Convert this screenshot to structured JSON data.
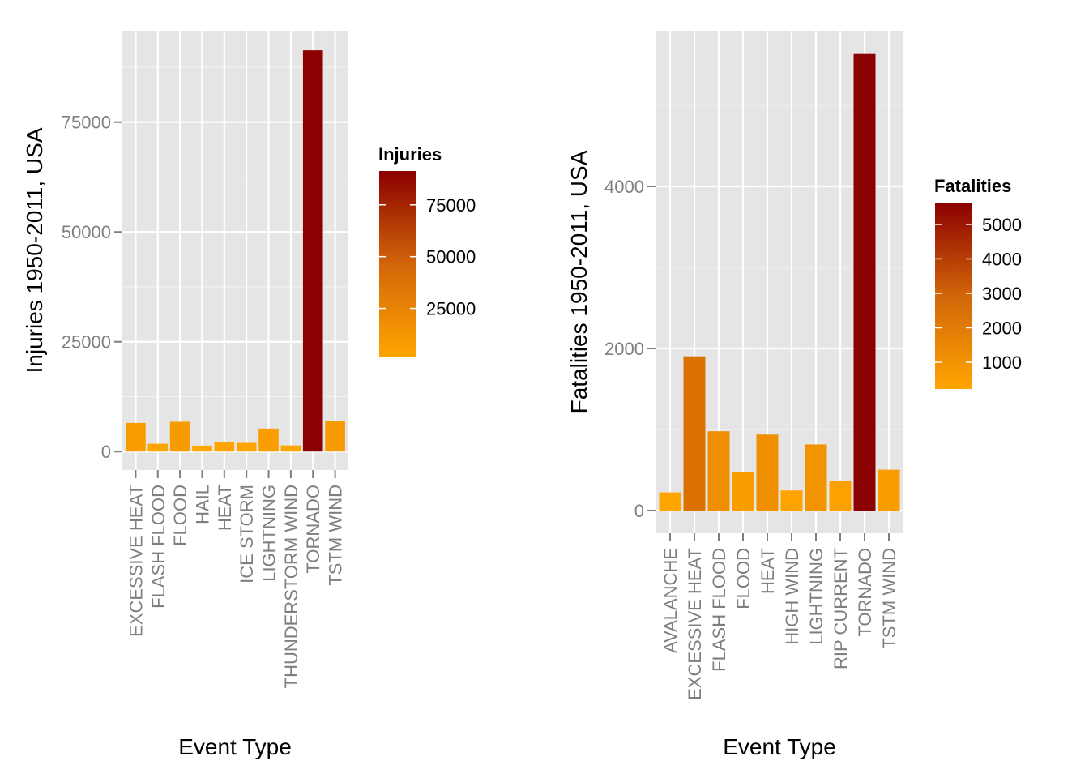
{
  "chart_data": [
    {
      "type": "bar",
      "xlabel": "Event Type",
      "ylabel": "Injuries 1950-2011, USA",
      "categories": [
        "EXCESSIVE HEAT",
        "FLASH FLOOD",
        "FLOOD",
        "HAIL",
        "HEAT",
        "ICE STORM",
        "LIGHTNING",
        "THUNDERSTORM WIND",
        "TORNADO",
        "TSTM WIND"
      ],
      "values": [
        6525,
        1777,
        6789,
        1361,
        2100,
        1975,
        5230,
        1400,
        91346,
        6957
      ],
      "ylim": [
        -4200,
        95800
      ],
      "yticks": [
        0,
        25000,
        50000,
        75000
      ],
      "legend": {
        "title": "Injuries",
        "placement": "right",
        "ticks": [
          25000,
          50000,
          75000
        ],
        "min": 1361,
        "max": 91346
      },
      "grid": true,
      "color_low": "#FFA500",
      "color_high": "#8B0000"
    },
    {
      "type": "bar",
      "xlabel": "Event Type",
      "ylabel": "Fatalities 1950-2011, USA",
      "categories": [
        "AVALANCHE",
        "EXCESSIVE HEAT",
        "FLASH FLOOD",
        "FLOOD",
        "HEAT",
        "HIGH WIND",
        "LIGHTNING",
        "RIP CURRENT",
        "TORNADO",
        "TSTM WIND"
      ],
      "values": [
        224,
        1903,
        978,
        470,
        937,
        248,
        816,
        368,
        5633,
        504
      ],
      "ylim": [
        -280,
        5920
      ],
      "yticks": [
        0,
        2000,
        4000
      ],
      "legend": {
        "title": "Fatalities",
        "placement": "right",
        "ticks": [
          1000,
          2000,
          3000,
          4000,
          5000
        ],
        "min": 224,
        "max": 5633
      },
      "grid": true,
      "color_low": "#FFA500",
      "color_high": "#8B0000"
    }
  ]
}
